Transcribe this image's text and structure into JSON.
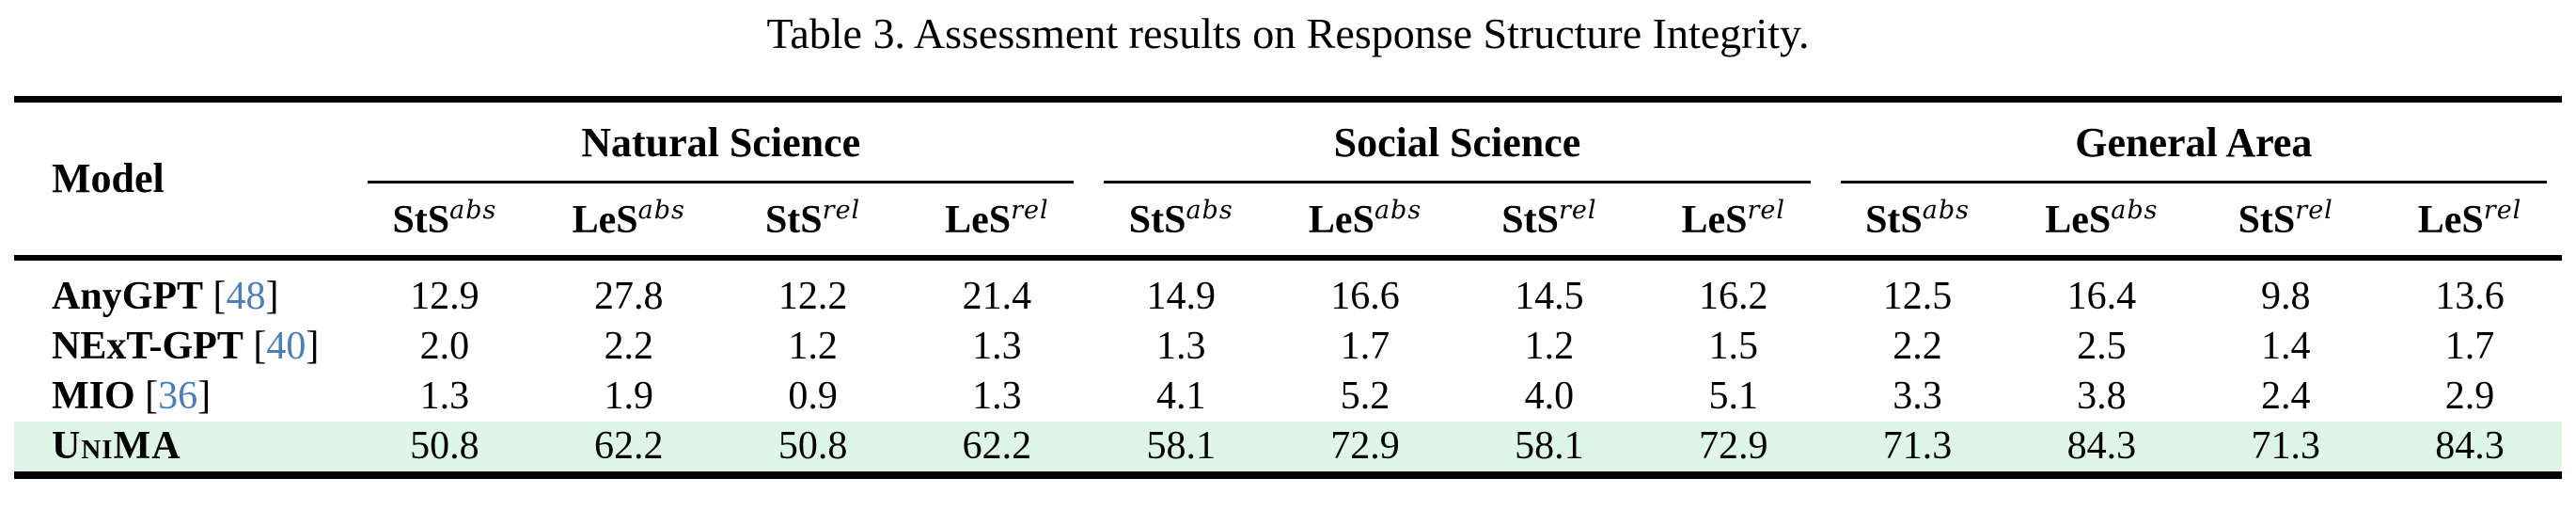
{
  "title": "Table 3. Assessment results on Response Structure Integrity.",
  "colors": {
    "highlight_row_background": "#def6e8",
    "citation_link": "#4a7fbe"
  },
  "table": {
    "model_header": "Model",
    "groups": [
      {
        "label": "Natural Science",
        "subheaders": [
          {
            "base": "StS",
            "sup": "abs"
          },
          {
            "base": "LeS",
            "sup": "abs"
          },
          {
            "base": "StS",
            "sup": "rel"
          },
          {
            "base": "LeS",
            "sup": "rel"
          }
        ]
      },
      {
        "label": "Social Science",
        "subheaders": [
          {
            "base": "StS",
            "sup": "abs"
          },
          {
            "base": "LeS",
            "sup": "abs"
          },
          {
            "base": "StS",
            "sup": "rel"
          },
          {
            "base": "LeS",
            "sup": "rel"
          }
        ]
      },
      {
        "label": "General Area",
        "subheaders": [
          {
            "base": "StS",
            "sup": "abs"
          },
          {
            "base": "LeS",
            "sup": "abs"
          },
          {
            "base": "StS",
            "sup": "rel"
          },
          {
            "base": "LeS",
            "sup": "rel"
          }
        ]
      }
    ],
    "rows": [
      {
        "name": "AnyGPT",
        "cite_prefix": " [",
        "cite_num": "48",
        "cite_suffix": "]",
        "values": [
          "12.9",
          "27.8",
          "12.2",
          "21.4",
          "14.9",
          "16.6",
          "14.5",
          "16.2",
          "12.5",
          "16.4",
          "9.8",
          "13.6"
        ]
      },
      {
        "name": "NExT-GPT",
        "cite_prefix": " [",
        "cite_num": "40",
        "cite_suffix": "]",
        "values": [
          "2.0",
          "2.2",
          "1.2",
          "1.3",
          "1.3",
          "1.7",
          "1.2",
          "1.5",
          "2.2",
          "2.5",
          "1.4",
          "1.7"
        ]
      },
      {
        "name": "MIO",
        "cite_prefix": " [",
        "cite_num": "36",
        "cite_suffix": "]",
        "values": [
          "1.3",
          "1.9",
          "0.9",
          "1.3",
          "4.1",
          "5.2",
          "4.0",
          "5.1",
          "3.3",
          "3.8",
          "2.4",
          "2.9"
        ]
      },
      {
        "name": "UniMA",
        "cite_prefix": "",
        "cite_num": "",
        "cite_suffix": "",
        "values": [
          "50.8",
          "62.2",
          "50.8",
          "62.2",
          "58.1",
          "72.9",
          "58.1",
          "72.9",
          "71.3",
          "84.3",
          "71.3",
          "84.3"
        ]
      }
    ]
  }
}
